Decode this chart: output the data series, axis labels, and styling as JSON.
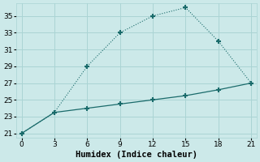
{
  "line1_x": [
    0,
    3,
    6,
    9,
    12,
    15,
    18,
    21
  ],
  "line1_y": [
    21,
    23.5,
    29,
    33,
    35,
    36,
    32,
    27
  ],
  "line2_x": [
    0,
    3,
    6,
    9,
    12,
    15,
    18,
    21
  ],
  "line2_y": [
    21,
    23.5,
    24.0,
    24.5,
    25.0,
    25.5,
    26.2,
    27
  ],
  "line_color": "#1a6b6b",
  "bg_color": "#cce9e9",
  "grid_color": "#aad4d4",
  "xlabel": "Humidex (Indice chaleur)",
  "xlim": [
    -0.5,
    21.5
  ],
  "ylim": [
    20.5,
    36.5
  ],
  "xticks": [
    0,
    3,
    6,
    9,
    12,
    15,
    18,
    21
  ],
  "yticks": [
    21,
    23,
    25,
    27,
    29,
    31,
    33,
    35
  ],
  "marker": "+",
  "markersize": 5,
  "markeredgewidth": 1.5,
  "linewidth1": 0.8,
  "linewidth2": 0.9,
  "xlabel_fontsize": 7.5,
  "tick_fontsize": 6.5
}
